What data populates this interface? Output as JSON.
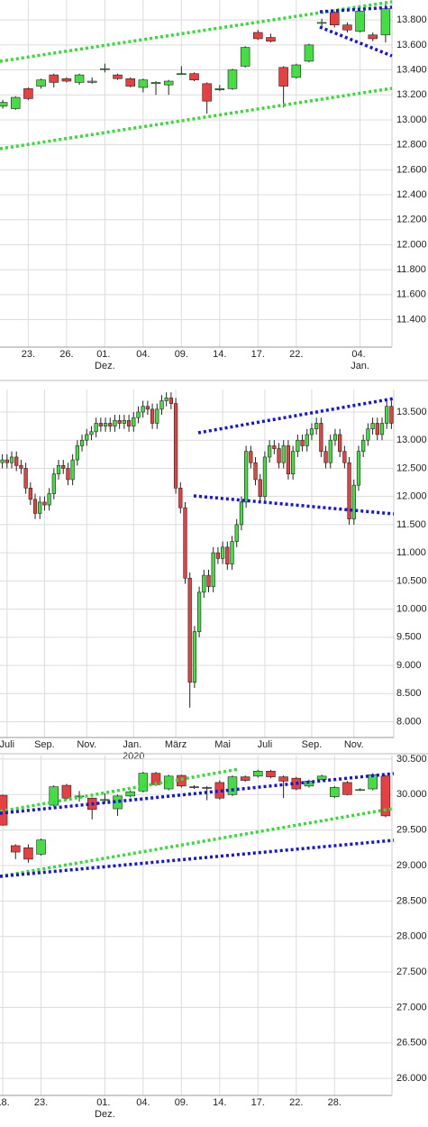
{
  "chart_data": [
    {
      "type": "candlestick",
      "up_color": "#44dd44",
      "down_color": "#e84040",
      "grid": true,
      "categories": [
        null,
        null,
        "23.",
        null,
        null,
        "26.",
        null,
        null,
        "01. Dez.",
        null,
        null,
        "04.",
        null,
        null,
        "09.",
        null,
        null,
        "14.",
        null,
        null,
        "17.",
        null,
        null,
        "22.",
        null,
        null,
        null,
        null,
        "04. Jan.",
        null,
        null
      ],
      "open": [
        13110,
        13090,
        13250,
        13270,
        13360,
        13330,
        13300,
        13300,
        13410,
        13360,
        13330,
        13260,
        13290,
        13280,
        13370,
        13370,
        13290,
        13240,
        13250,
        13430,
        13700,
        13660,
        13420,
        13340,
        13470,
        13780,
        13860,
        13760,
        13710,
        13680,
        13680
      ],
      "high": [
        13160,
        13190,
        13260,
        13330,
        13370,
        13340,
        13370,
        13340,
        13450,
        13370,
        13340,
        13330,
        13310,
        13320,
        13430,
        13380,
        13300,
        13280,
        13410,
        13590,
        13720,
        13690,
        13430,
        13450,
        13610,
        13810,
        13870,
        13780,
        13880,
        13700,
        13930
      ],
      "low": [
        13090,
        13080,
        13160,
        13250,
        13260,
        13300,
        13280,
        13290,
        13380,
        13320,
        13260,
        13220,
        13200,
        13200,
        13360,
        13310,
        13050,
        13230,
        13240,
        13420,
        13640,
        13620,
        13100,
        13330,
        13460,
        13730,
        13740,
        13700,
        13700,
        13630,
        13620
      ],
      "close": [
        13140,
        13180,
        13170,
        13320,
        13300,
        13310,
        13360,
        13310,
        13410,
        13330,
        13270,
        13320,
        13300,
        13310,
        13370,
        13320,
        13150,
        13250,
        13400,
        13580,
        13650,
        13630,
        13270,
        13440,
        13600,
        13780,
        13760,
        13720,
        13870,
        13650,
        13890
      ],
      "ylim": [
        11180,
        13960
      ],
      "yticks": [
        {
          "value": 11400,
          "label": "11.400"
        },
        {
          "value": 11600,
          "label": "11.600"
        },
        {
          "value": 11800,
          "label": "11.800"
        },
        {
          "value": 12000,
          "label": "12.000"
        },
        {
          "value": 12200,
          "label": "12.200"
        },
        {
          "value": 12400,
          "label": "12.400"
        },
        {
          "value": 12600,
          "label": "12.600"
        },
        {
          "value": 12800,
          "label": "12.800"
        },
        {
          "value": 13000,
          "label": "13.000"
        },
        {
          "value": 13200,
          "label": "13.200"
        },
        {
          "value": 13400,
          "label": "13.400"
        },
        {
          "value": 13600,
          "label": "13.600"
        },
        {
          "value": 13800,
          "label": "13.800"
        }
      ]
    },
    {
      "type": "candlestick",
      "up_color": "#44dd44",
      "down_color": "#e84040",
      "grid": true,
      "categories": [
        null,
        "Juli",
        null,
        null,
        null,
        null,
        null,
        null,
        null,
        "Sep.",
        null,
        null,
        null,
        null,
        null,
        null,
        null,
        null,
        "Nov.",
        null,
        null,
        null,
        null,
        null,
        null,
        null,
        null,
        null,
        "Jan. 2020",
        null,
        null,
        null,
        null,
        null,
        null,
        null,
        null,
        "März",
        null,
        null,
        null,
        null,
        null,
        null,
        null,
        null,
        null,
        "Mai",
        null,
        null,
        null,
        null,
        null,
        null,
        null,
        null,
        "Juli",
        null,
        null,
        null,
        null,
        null,
        null,
        null,
        null,
        null,
        "Sep.",
        null,
        null,
        null,
        null,
        null,
        null,
        null,
        null,
        "Nov.",
        null,
        null,
        null,
        null,
        null,
        null,
        null,
        null
      ],
      "open": [
        12600,
        12650,
        12600,
        12700,
        12550,
        12500,
        12150,
        11950,
        11700,
        11900,
        11850,
        12050,
        12400,
        12550,
        12500,
        12300,
        12650,
        12900,
        13000,
        13100,
        13150,
        13300,
        13250,
        13300,
        13250,
        13350,
        13300,
        13350,
        13250,
        13400,
        13500,
        13600,
        13550,
        13300,
        13550,
        13700,
        13750,
        13650,
        12150,
        11800,
        10550,
        8700,
        9600,
        10300,
        10600,
        10400,
        11000,
        10900,
        11100,
        10800,
        11200,
        11500,
        11900,
        12800,
        12600,
        12300,
        12000,
        12700,
        12900,
        12850,
        12600,
        12900,
        12400,
        12800,
        13000,
        12900,
        13100,
        13200,
        13300,
        12800,
        12600,
        13000,
        13100,
        12800,
        12600,
        11600,
        12200,
        12800,
        13000,
        13200,
        13300,
        13100,
        13300,
        13600
      ],
      "high": [
        12750,
        12750,
        12800,
        12800,
        12650,
        12600,
        12250,
        12050,
        12000,
        12000,
        12150,
        12500,
        12650,
        12650,
        12600,
        12750,
        13000,
        13100,
        13200,
        13250,
        13400,
        13400,
        13400,
        13400,
        13450,
        13450,
        13450,
        13450,
        13500,
        13600,
        13700,
        13700,
        13650,
        13650,
        13800,
        13850,
        13850,
        13750,
        12250,
        11900,
        10650,
        9700,
        10400,
        10700,
        10700,
        11100,
        11100,
        11200,
        11200,
        11300,
        11600,
        12000,
        12900,
        12900,
        12700,
        12400,
        12800,
        13000,
        13000,
        12950,
        13000,
        13000,
        12900,
        13100,
        13100,
        13200,
        13300,
        13400,
        13400,
        12900,
        13100,
        13200,
        13200,
        12900,
        12700,
        12300,
        12900,
        13100,
        13300,
        13400,
        13400,
        13400,
        13700,
        13700
      ],
      "low": [
        12500,
        12500,
        12500,
        12450,
        12400,
        12050,
        11850,
        11600,
        11600,
        11750,
        11750,
        11950,
        12300,
        12400,
        12200,
        12200,
        12550,
        12800,
        12900,
        13000,
        13050,
        13150,
        13150,
        13150,
        13150,
        13200,
        13200,
        13150,
        13150,
        13300,
        13400,
        13450,
        13200,
        13200,
        13450,
        13600,
        13550,
        12050,
        11700,
        10450,
        8250,
        8600,
        9500,
        10200,
        10300,
        10300,
        10800,
        10800,
        10700,
        10700,
        11100,
        11400,
        11800,
        12500,
        12200,
        11900,
        11900,
        12600,
        12750,
        12500,
        12500,
        12300,
        12300,
        12700,
        12800,
        12800,
        13000,
        13100,
        12700,
        12500,
        12500,
        12900,
        12700,
        12500,
        11500,
        11500,
        12100,
        12700,
        12900,
        13100,
        13000,
        13000,
        13200,
        13200
      ],
      "close": [
        12650,
        12600,
        12700,
        12550,
        12500,
        12150,
        11950,
        11700,
        11900,
        11850,
        12050,
        12400,
        12550,
        12500,
        12300,
        12650,
        12900,
        13000,
        13100,
        13150,
        13300,
        13250,
        13300,
        13250,
        13350,
        13300,
        13350,
        13250,
        13400,
        13500,
        13600,
        13550,
        13300,
        13550,
        13700,
        13750,
        13650,
        12150,
        11800,
        10550,
        8700,
        9600,
        10300,
        10600,
        10400,
        11000,
        10900,
        11100,
        10800,
        11200,
        11500,
        11900,
        12800,
        12600,
        12300,
        12000,
        12700,
        12900,
        12850,
        12600,
        12900,
        12400,
        12800,
        13000,
        12900,
        13100,
        13200,
        13300,
        12800,
        12600,
        13000,
        13100,
        12800,
        12600,
        11600,
        12200,
        12800,
        13000,
        13200,
        13300,
        13100,
        13300,
        13600,
        13300
      ],
      "ylim": [
        7720,
        13900
      ],
      "yticks": [
        {
          "value": 8000,
          "label": "8.000"
        },
        {
          "value": 8500,
          "label": "8.500"
        },
        {
          "value": 9000,
          "label": "9.000"
        },
        {
          "value": 9500,
          "label": "9.500"
        },
        {
          "value": 10000,
          "label": "10.000"
        },
        {
          "value": 10500,
          "label": "10.500"
        },
        {
          "value": 11000,
          "label": "11.000"
        },
        {
          "value": 11500,
          "label": "11.500"
        },
        {
          "value": 12000,
          "label": "12.000"
        },
        {
          "value": 12500,
          "label": "12.500"
        },
        {
          "value": 13000,
          "label": "13.000"
        },
        {
          "value": 13500,
          "label": "13.500"
        }
      ]
    },
    {
      "type": "candlestick",
      "up_color": "#44dd44",
      "down_color": "#e84040",
      "grid": true,
      "categories": [
        "18.",
        null,
        null,
        "23.",
        null,
        null,
        null,
        null,
        "01. Dez.",
        null,
        null,
        "04.",
        null,
        null,
        "09.",
        null,
        null,
        "14.",
        null,
        null,
        "17.",
        null,
        null,
        "22.",
        null,
        null,
        "28.",
        null,
        null,
        null,
        null
      ],
      "open": [
        29990,
        29280,
        29250,
        29160,
        29850,
        30130,
        29980,
        29950,
        29920,
        29800,
        29980,
        30050,
        30300,
        30080,
        30270,
        30110,
        30100,
        30170,
        30000,
        30250,
        30260,
        30330,
        30250,
        30230,
        30120,
        30210,
        29970,
        30170,
        30070,
        30080,
        30260
      ],
      "high": [
        30000,
        29300,
        29300,
        29380,
        30130,
        30150,
        30050,
        29960,
        30020,
        30000,
        30060,
        30320,
        30320,
        30280,
        30280,
        30130,
        30120,
        30200,
        30270,
        30270,
        30350,
        30350,
        30270,
        30250,
        30210,
        30280,
        30120,
        30190,
        30090,
        30300,
        30280
      ],
      "low": [
        29560,
        29090,
        29040,
        29140,
        29830,
        29930,
        29900,
        29650,
        29880,
        29700,
        29960,
        30030,
        30120,
        30060,
        30100,
        30080,
        29920,
        29930,
        29980,
        30180,
        30240,
        30230,
        29950,
        30060,
        30100,
        30200,
        29950,
        29990,
        30050,
        30060,
        29680
      ],
      "close": [
        29570,
        29190,
        29090,
        29360,
        30110,
        29950,
        29980,
        29790,
        29930,
        29980,
        30040,
        30300,
        30140,
        30260,
        30120,
        30100,
        30090,
        29950,
        30250,
        30200,
        30330,
        30250,
        30190,
        30080,
        30190,
        30260,
        30100,
        30000,
        30070,
        30280,
        29700
      ],
      "ylim": [
        25760,
        30550
      ],
      "yticks": [
        {
          "value": 26000,
          "label": "26.000"
        },
        {
          "value": 26500,
          "label": "26.500"
        },
        {
          "value": 27000,
          "label": "27.000"
        },
        {
          "value": 27500,
          "label": "27.500"
        },
        {
          "value": 28000,
          "label": "28.000"
        },
        {
          "value": 28500,
          "label": "28.500"
        },
        {
          "value": 29000,
          "label": "29.000"
        },
        {
          "value": 29500,
          "label": "29.500"
        },
        {
          "value": 30000,
          "label": "30.000"
        },
        {
          "value": 30500,
          "label": "30.500"
        }
      ]
    }
  ]
}
